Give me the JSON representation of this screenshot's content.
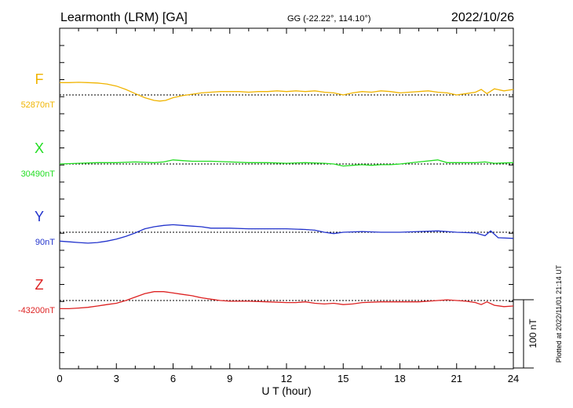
{
  "chart_data": {
    "type": "line",
    "title": "Learmonth (LRM)  [GA]",
    "coords": "GG (-22.22°, 114.10°)",
    "date": "2022/10/26",
    "xlabel": "U T (hour)",
    "xlim": [
      0,
      24
    ],
    "x_ticks": [
      "0",
      "3",
      "6",
      "9",
      "12",
      "15",
      "18",
      "21",
      "24"
    ],
    "scale_label": "100 nT",
    "footer": "Plotted at 2022/11/01 21:14 UT",
    "series": [
      {
        "name": "F",
        "baseline": "52870nT",
        "color": "#f0b400",
        "x": [
          0,
          0.5,
          1,
          1.5,
          2,
          2.5,
          3,
          3.5,
          4,
          4.5,
          5,
          5.3,
          5.6,
          6,
          6.5,
          7,
          7.5,
          8,
          8.5,
          9,
          9.5,
          10,
          10.5,
          11,
          11.5,
          12,
          12.5,
          13,
          13.5,
          14,
          14.5,
          15,
          15.5,
          16,
          16.5,
          17,
          17.5,
          18,
          18.5,
          19,
          19.5,
          20,
          20.5,
          21,
          21.5,
          22,
          22.3,
          22.6,
          23,
          23.5,
          24
        ],
        "y": [
          18,
          18,
          18.5,
          18,
          17.5,
          16,
          13,
          8,
          2,
          -4,
          -8,
          -9,
          -8,
          -4,
          -1,
          1,
          3,
          4,
          5,
          5,
          5,
          4,
          5,
          5,
          6,
          5,
          6,
          5,
          6,
          4,
          3,
          0,
          3,
          5,
          4,
          6,
          5,
          3,
          4,
          5,
          6,
          4,
          3,
          0,
          2,
          4,
          8,
          2,
          9,
          6,
          8
        ]
      },
      {
        "name": "X",
        "baseline": "30490nT",
        "color": "#22dd22",
        "x": [
          0,
          1,
          2,
          3,
          4,
          5,
          5.5,
          6,
          6.5,
          7,
          8,
          9,
          10,
          11,
          12,
          13,
          14,
          14.5,
          15,
          15.5,
          16,
          16.5,
          17,
          17.5,
          18,
          19,
          20,
          20.5,
          21,
          22,
          22.5,
          23,
          24
        ],
        "y": [
          0,
          1,
          2,
          2,
          3,
          2,
          3,
          6,
          5,
          4,
          4,
          3,
          2,
          2,
          1,
          2,
          1,
          0,
          -3,
          -2,
          -1,
          -2,
          -1,
          -1,
          0,
          3,
          6,
          2,
          2,
          2,
          3,
          1,
          2
        ]
      },
      {
        "name": "Y",
        "baseline": "90nT",
        "color": "#2233cc",
        "x": [
          0,
          0.5,
          1,
          1.5,
          2,
          2.5,
          3,
          3.5,
          4,
          4.5,
          5,
          5.5,
          6,
          6.5,
          7,
          7.5,
          8,
          9,
          10,
          11,
          12,
          13,
          13.5,
          14,
          14.5,
          15,
          16,
          17,
          18,
          19,
          20,
          20.5,
          21,
          22,
          22.5,
          22.8,
          23.2,
          24
        ],
        "y": [
          -13,
          -14,
          -15,
          -16,
          -15,
          -13,
          -10,
          -6,
          -1,
          5,
          8,
          10,
          11,
          10,
          9,
          8,
          6,
          6,
          5,
          5,
          5,
          4,
          3,
          0,
          -2,
          0,
          1,
          0,
          0,
          1,
          2,
          1,
          0,
          -1,
          -5,
          2,
          -8,
          -9
        ]
      },
      {
        "name": "Z",
        "baseline": "-43200nT",
        "color": "#dd2222",
        "x": [
          0,
          0.5,
          1,
          1.5,
          2,
          2.5,
          3,
          3.5,
          4,
          4.5,
          5,
          5.5,
          6,
          6.5,
          7,
          7.5,
          8,
          8.5,
          9,
          10,
          11,
          12,
          12.5,
          13,
          13.5,
          14,
          14.5,
          15,
          15.5,
          16,
          17,
          18,
          19,
          19.5,
          20,
          20.5,
          21,
          21.5,
          22,
          22.3,
          22.6,
          23,
          23.5,
          24
        ],
        "y": [
          -12,
          -12,
          -11,
          -10,
          -8,
          -6,
          -4,
          0,
          5,
          10,
          13,
          13,
          11,
          9,
          7,
          4,
          2,
          0,
          -1,
          -1,
          -2,
          -3,
          -3,
          -2,
          -4,
          -5,
          -4,
          -6,
          -5,
          -3,
          -2,
          -2,
          -2,
          -1,
          0,
          1,
          0,
          -1,
          -3,
          -6,
          -2,
          -7,
          -9,
          -8
        ]
      }
    ]
  }
}
